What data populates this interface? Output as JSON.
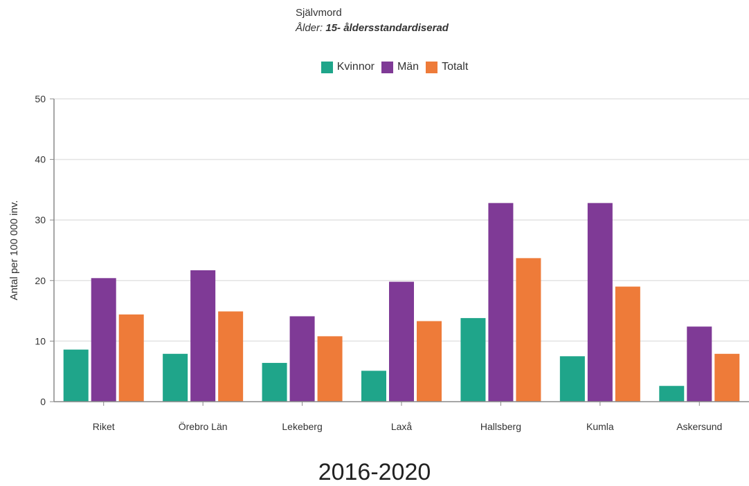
{
  "title": "Självmord",
  "subtitle_prefix": "Ålder:",
  "subtitle_value": "15- åldersstandardiserad",
  "footer": "2016-2020",
  "chart_data": {
    "type": "bar",
    "ylabel": "Antal per 100 000 inv.",
    "xlabel": "",
    "ylim": [
      0,
      50
    ],
    "yticks": [
      0,
      10,
      20,
      30,
      40,
      50
    ],
    "grid": true,
    "legend_position": "top-center",
    "categories": [
      "Riket",
      "Örebro Län",
      "Lekeberg",
      "Laxå",
      "Hallsberg",
      "Kumla",
      "Askersund"
    ],
    "series": [
      {
        "name": "Kvinnor",
        "color": "#1fa58a",
        "values": [
          8.6,
          7.9,
          6.4,
          5.1,
          13.8,
          7.5,
          2.6
        ]
      },
      {
        "name": "Män",
        "color": "#7f3a96",
        "values": [
          20.4,
          21.7,
          14.1,
          19.8,
          32.8,
          32.8,
          12.4
        ]
      },
      {
        "name": "Totalt",
        "color": "#ee7b39",
        "values": [
          14.4,
          14.9,
          10.8,
          13.3,
          23.7,
          19.0,
          7.9
        ]
      }
    ]
  }
}
